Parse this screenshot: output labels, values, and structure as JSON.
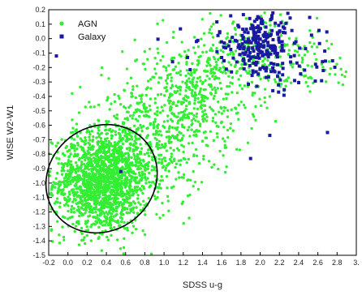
{
  "chart_data": {
    "type": "scatter",
    "title": "",
    "xlabel": "SDSS u-g",
    "ylabel": "WISE W2-W1",
    "xlim": [
      -0.2,
      3.0
    ],
    "ylim": [
      -1.5,
      0.2
    ],
    "x_ticks": [
      "-0.2",
      "0.0",
      "0.2",
      "0.4",
      "0.6",
      "0.8",
      "1.0",
      "1.2",
      "1.4",
      "1.6",
      "1.8",
      "2.0",
      "2.2",
      "2.4",
      "2.6",
      "2.8",
      "3."
    ],
    "y_ticks": [
      "0.2",
      "0.1",
      "0.0",
      "-0.1",
      "-0.2",
      "-0.3",
      "-0.4",
      "-0.5",
      "-0.6",
      "-0.7",
      "-0.8",
      "-0.9",
      "-1.0",
      "-1.1",
      "-1.2",
      "-1.3",
      "-1.4",
      "-1.5"
    ],
    "grid": false,
    "legend": {
      "placement": "top-left",
      "entries": [
        "AGN",
        "Galaxy"
      ]
    },
    "series": [
      {
        "name": "AGN",
        "color": "#33ee33",
        "marker": "circle",
        "clusters": [
          {
            "center": [
              0.35,
              -1.0
            ],
            "spread": [
              0.25,
              0.17
            ],
            "count": 1500
          },
          {
            "center": [
              0.75,
              -0.75
            ],
            "spread": [
              0.35,
              0.2
            ],
            "count": 500
          },
          {
            "center": [
              1.25,
              -0.42
            ],
            "spread": [
              0.35,
              0.18
            ],
            "count": 400
          },
          {
            "center": [
              1.8,
              -0.12
            ],
            "spread": [
              0.4,
              0.14
            ],
            "count": 250
          },
          {
            "center": [
              2.4,
              -0.2
            ],
            "spread": [
              0.4,
              0.1
            ],
            "count": 80
          }
        ]
      },
      {
        "name": "Galaxy",
        "color": "#1a1aa0",
        "marker": "square",
        "clusters": [
          {
            "center": [
              2.0,
              -0.05
            ],
            "spread": [
              0.15,
              0.1
            ],
            "count": 200
          },
          {
            "center": [
              2.3,
              -0.15
            ],
            "spread": [
              0.3,
              0.12
            ],
            "count": 50
          },
          {
            "center": [
              1.6,
              -0.08
            ],
            "spread": [
              0.25,
              0.08
            ],
            "count": 25
          }
        ],
        "points": [
          [
            -0.12,
            -0.12
          ],
          [
            2.7,
            -0.65
          ],
          [
            2.1,
            -0.67
          ],
          [
            1.9,
            -0.83
          ],
          [
            0.55,
            -0.92
          ]
        ]
      }
    ],
    "annotations": [
      {
        "type": "ellipse",
        "center": [
          0.35,
          -0.97
        ],
        "radii": [
          0.6,
          0.36
        ],
        "angle_deg": 38,
        "color": "#000000"
      }
    ]
  }
}
